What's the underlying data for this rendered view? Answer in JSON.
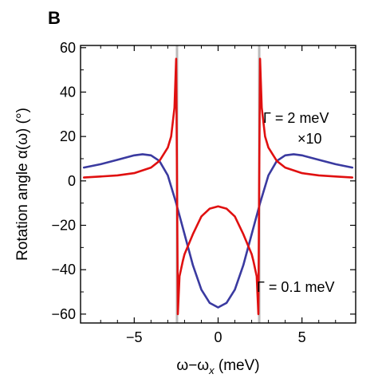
{
  "panel_label": "B",
  "colors": {
    "broad": "#3a3aa0",
    "narrow": "#e01010",
    "marker": "#bbbbbb"
  },
  "annotations": {
    "broad_label": "Γ = 2 meV",
    "broad_scale": "×10",
    "narrow_label": "Γ = 0.1 meV"
  },
  "chart_data": {
    "type": "line",
    "title": "",
    "xlabel_main": "ω−ω",
    "xlabel_sub": "x",
    "xlabel_unit": " (meV)",
    "ylabel": "Rotation angle α(ω) (°)",
    "xlim": [
      -8.2,
      8.2
    ],
    "ylim": [
      -64,
      61
    ],
    "xticks": [
      -5,
      0,
      5
    ],
    "xtick_labels": [
      "−5",
      "0",
      "5"
    ],
    "yticks": [
      -60,
      -40,
      -20,
      0,
      20,
      40,
      60
    ],
    "ytick_labels": [
      "−60",
      "−40",
      "−20",
      "0",
      "20",
      "40",
      "60"
    ],
    "grid": false,
    "reference_lines_x": [
      -2.45,
      2.45
    ],
    "series": [
      {
        "name": "Γ = 2 meV",
        "color": "#3a3aa0",
        "x": [
          -8,
          -7,
          -6,
          -5,
          -4.5,
          -4,
          -3.5,
          -3,
          -2.5,
          -2,
          -1.5,
          -1,
          -0.5,
          0,
          0.5,
          1,
          1.5,
          2,
          2.5,
          3,
          3.5,
          4,
          4.5,
          5,
          6,
          7,
          8
        ],
        "y": [
          6,
          7.5,
          9.5,
          11.5,
          12,
          11.5,
          9,
          2.5,
          -10,
          -24,
          -38,
          -49,
          -55,
          -57,
          -55,
          -49,
          -38,
          -24,
          -10,
          2.5,
          9,
          11.5,
          12,
          11.5,
          9.5,
          7.5,
          6
        ]
      },
      {
        "name": "Γ = 0.1 meV",
        "color": "#e01010",
        "x": [
          -8,
          -7,
          -6,
          -5,
          -4,
          -3.5,
          -3,
          -2.8,
          -2.6,
          -2.5,
          -2.45,
          -2.4,
          -2.3,
          -2.1,
          -2,
          -1.5,
          -1,
          -0.5,
          0,
          0.5,
          1,
          1.5,
          2,
          2.1,
          2.3,
          2.4,
          2.45,
          2.5,
          2.6,
          2.8,
          3,
          3.5,
          4,
          5,
          6,
          7,
          8
        ],
        "y": [
          1.5,
          2,
          2.5,
          3.5,
          6,
          9,
          15,
          20,
          33,
          55,
          0,
          -60,
          -43,
          -36,
          -33,
          -24,
          -16,
          -12.5,
          -11.5,
          -12.5,
          -16,
          -24,
          -33,
          -36,
          -43,
          -60,
          0,
          55,
          33,
          20,
          15,
          9,
          6,
          3.5,
          2.5,
          2,
          1.5
        ]
      }
    ]
  }
}
